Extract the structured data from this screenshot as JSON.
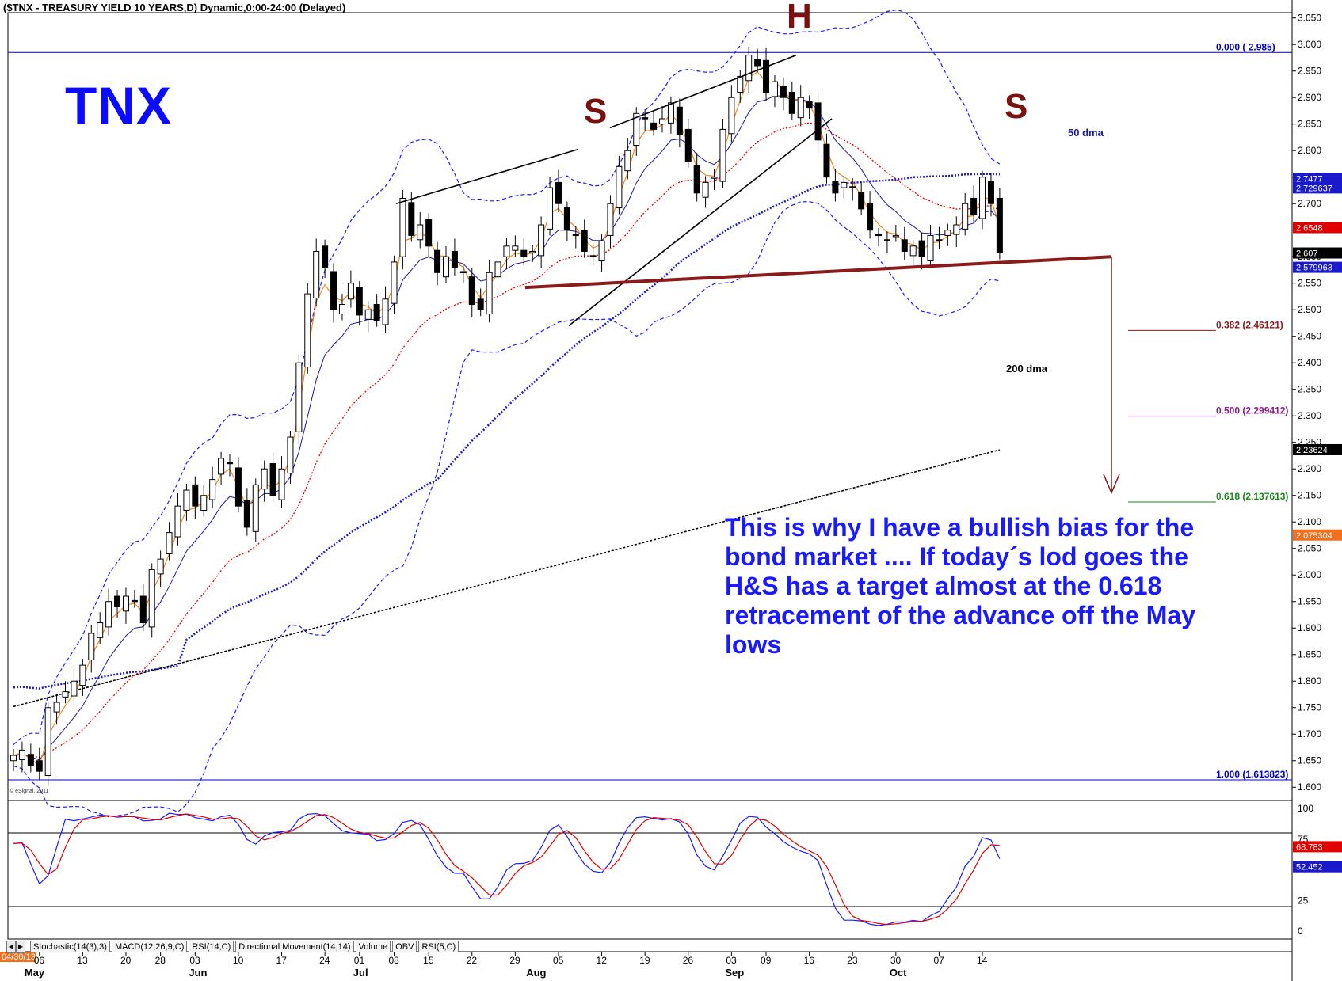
{
  "header": {
    "title": "($TNX - TREASURY YIELD 10 YEARS,D) Dynamic,0:00-24:00 (Delayed)",
    "symbol_label": "TNX"
  },
  "annotations": {
    "left_shoulder": "S",
    "head": "H",
    "right_shoulder": "S",
    "dma50_label": "50 dma",
    "dma200_label": "200 dma",
    "note": "This is why I have a bullish bias for the bond market .... If today´s lod goes the H&S has a target  almost at the 0.618 retracement of the advance off the May lows",
    "copyright": "© eSignal, 2011"
  },
  "fib_levels": [
    {
      "label": "0.000 ( 2.985)",
      "value": 2.985,
      "color": "#0000cc"
    },
    {
      "label": "0.382 (2.46121)",
      "value": 2.461,
      "color": "#8b1a1a"
    },
    {
      "label": "0.500 (2.299412)",
      "value": 2.2994,
      "color": "#8b1a8b"
    },
    {
      "label": "0.618 (2.137613)",
      "value": 2.1376,
      "color": "#1a8b1a"
    },
    {
      "label": "1.000 (1.613823)",
      "value": 1.6138,
      "color": "#0000cc"
    }
  ],
  "price_badges": [
    {
      "label": "2.7477",
      "value": 2.7477,
      "bg": "#1a1acc",
      "fg": "#ffffff"
    },
    {
      "label": "2.729637",
      "value": 2.7296,
      "bg": "#1a1acc",
      "fg": "#ffffff"
    },
    {
      "label": "2.6548",
      "value": 2.6548,
      "bg": "#e00000",
      "fg": "#ffffff"
    },
    {
      "label": "2.607",
      "value": 2.607,
      "bg": "#000000",
      "fg": "#ffffff"
    },
    {
      "label": "2.579963",
      "value": 2.58,
      "bg": "#1a1acc",
      "fg": "#ffffff"
    },
    {
      "label": "2.23624",
      "value": 2.2362,
      "bg": "#000000",
      "fg": "#ffffff"
    },
    {
      "label": "2.075304",
      "value": 2.0753,
      "bg": "#f07020",
      "fg": "#ffffff"
    }
  ],
  "osc_badges": [
    {
      "label": "68.783",
      "value": 68.783,
      "bg": "#e00000",
      "fg": "#ffffff"
    },
    {
      "label": "52.452",
      "value": 52.452,
      "bg": "#1a1acc",
      "fg": "#ffffff"
    }
  ],
  "date_badge": "04/30/13",
  "indicator_tabs": [
    "Stochastic(14(3),3)",
    "MACD(12,26,9,C)",
    "RSI(14,C)",
    "Directional Movement(14,14)",
    "Volume",
    "OBV",
    "RSI(5,C)"
  ],
  "colors": {
    "candle": "#000000",
    "bollinger": "#1a1aff",
    "dma50": "#1a1acc",
    "dma200": "#000000",
    "ema_fast": "#f08a20",
    "ema_mid": "#1a1a99",
    "ema_slow": "#e00000",
    "neckline": "#8b1a1a",
    "stoch_k": "#1a1aff",
    "stoch_d": "#e00000"
  },
  "chart_data": {
    "type": "candlestick",
    "title": "($TNX - TREASURY YIELD 10 YEARS,D) Dynamic,0:00-24:00 (Delayed)",
    "ylim": [
      1.575,
      3.06
    ],
    "y_ticks": [
      "1.600",
      "1.650",
      "1.700",
      "1.750",
      "1.800",
      "1.850",
      "1.900",
      "1.950",
      "2.000",
      "2.050",
      "2.100",
      "2.150",
      "2.200",
      "2.250",
      "2.300",
      "2.350",
      "2.400",
      "2.450",
      "2.500",
      "2.550",
      "2.600",
      "2.650",
      "2.700",
      "2.750",
      "2.800",
      "2.850",
      "2.900",
      "2.950",
      "3.000",
      "3.050"
    ],
    "x_day_labels": [
      {
        "label": "06",
        "i": 3
      },
      {
        "label": "13",
        "i": 8
      },
      {
        "label": "20",
        "i": 13
      },
      {
        "label": "28",
        "i": 17
      },
      {
        "label": "03",
        "i": 21
      },
      {
        "label": "10",
        "i": 26
      },
      {
        "label": "17",
        "i": 31
      },
      {
        "label": "24",
        "i": 36
      },
      {
        "label": "01",
        "i": 40
      },
      {
        "label": "08",
        "i": 44
      },
      {
        "label": "15",
        "i": 48
      },
      {
        "label": "22",
        "i": 53
      },
      {
        "label": "29",
        "i": 58
      },
      {
        "label": "05",
        "i": 63
      },
      {
        "label": "12",
        "i": 68
      },
      {
        "label": "19",
        "i": 73
      },
      {
        "label": "26",
        "i": 78
      },
      {
        "label": "03",
        "i": 83
      },
      {
        "label": "09",
        "i": 87
      },
      {
        "label": "16",
        "i": 92
      },
      {
        "label": "23",
        "i": 97
      },
      {
        "label": "30",
        "i": 102
      },
      {
        "label": "07",
        "i": 107
      },
      {
        "label": "14",
        "i": 112
      }
    ],
    "x_month_labels": [
      {
        "label": "May",
        "i": 2
      },
      {
        "label": "Jun",
        "i": 21
      },
      {
        "label": "Jul",
        "i": 40
      },
      {
        "label": "Aug",
        "i": 60
      },
      {
        "label": "Sep",
        "i": 83
      },
      {
        "label": "Oct",
        "i": 102
      }
    ],
    "close": [
      1.66,
      1.67,
      1.64,
      1.63,
      1.75,
      1.76,
      1.78,
      1.8,
      1.83,
      1.89,
      1.91,
      1.95,
      1.94,
      1.96,
      1.95,
      1.91,
      2.01,
      2.03,
      2.08,
      2.13,
      2.16,
      2.13,
      2.15,
      2.18,
      2.22,
      2.21,
      2.13,
      2.09,
      2.17,
      2.2,
      2.15,
      2.2,
      2.26,
      2.4,
      2.53,
      2.61,
      2.58,
      2.5,
      2.51,
      2.55,
      2.49,
      2.5,
      2.48,
      2.52,
      2.59,
      2.71,
      2.64,
      2.66,
      2.62,
      2.57,
      2.6,
      2.58,
      2.57,
      2.51,
      2.5,
      2.57,
      2.59,
      2.62,
      2.62,
      2.6,
      2.61,
      2.66,
      2.73,
      2.7,
      2.65,
      2.64,
      2.61,
      2.6,
      2.63,
      2.7,
      2.77,
      2.8,
      2.87,
      2.86,
      2.84,
      2.86,
      2.89,
      2.83,
      2.78,
      2.72,
      2.74,
      2.75,
      2.84,
      2.9,
      2.94,
      2.98,
      2.96,
      2.91,
      2.93,
      2.9,
      2.87,
      2.9,
      2.88,
      2.82,
      2.75,
      2.72,
      2.74,
      2.73,
      2.69,
      2.65,
      2.64,
      2.63,
      2.64,
      2.61,
      2.62,
      2.6,
      2.64,
      2.63,
      2.65,
      2.66,
      2.7,
      2.68,
      2.75,
      2.7,
      2.607
    ]
  }
}
